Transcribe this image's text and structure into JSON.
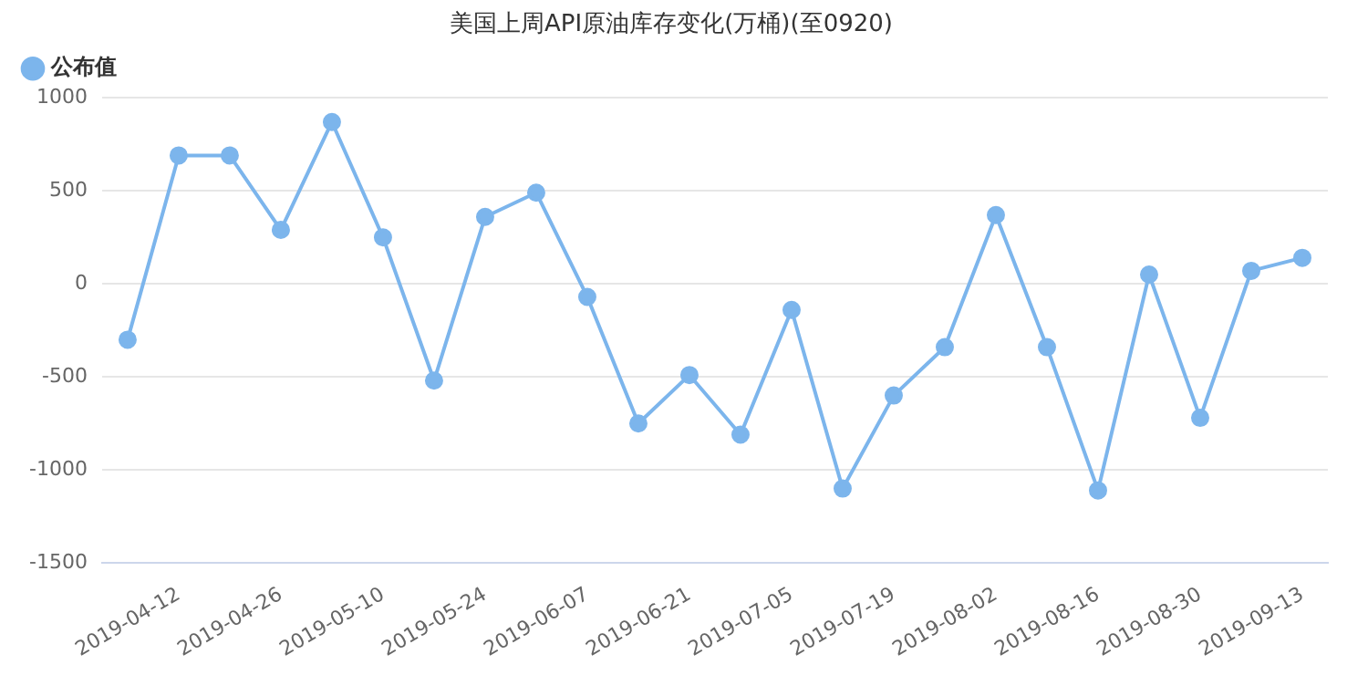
{
  "chart_data": {
    "type": "line",
    "title": "美国上周API原油库存变化(万桶)(至0920)",
    "categories": [
      null,
      "2019-04-12",
      null,
      "2019-04-26",
      null,
      "2019-05-10",
      null,
      "2019-05-24",
      null,
      "2019-06-07",
      null,
      "2019-06-21",
      null,
      "2019-07-05",
      null,
      "2019-07-19",
      null,
      "2019-08-02",
      null,
      "2019-08-16",
      null,
      "2019-08-30",
      null,
      "2019-09-13"
    ],
    "series": [
      {
        "name": "公布值",
        "color": "#7cb5ec",
        "values": [
          -300,
          690,
          690,
          290,
          870,
          250,
          -520,
          360,
          490,
          -70,
          -750,
          -490,
          -810,
          -140,
          -1100,
          -600,
          -340,
          370,
          -340,
          -1110,
          50,
          -720,
          70,
          140
        ]
      }
    ],
    "ylim": [
      -1500,
      1000
    ],
    "yticks": [
      -1500,
      -1000,
      -500,
      0,
      500,
      1000
    ],
    "grid": "y",
    "legend": "top left",
    "marker": "circle",
    "line_style": "solid"
  }
}
